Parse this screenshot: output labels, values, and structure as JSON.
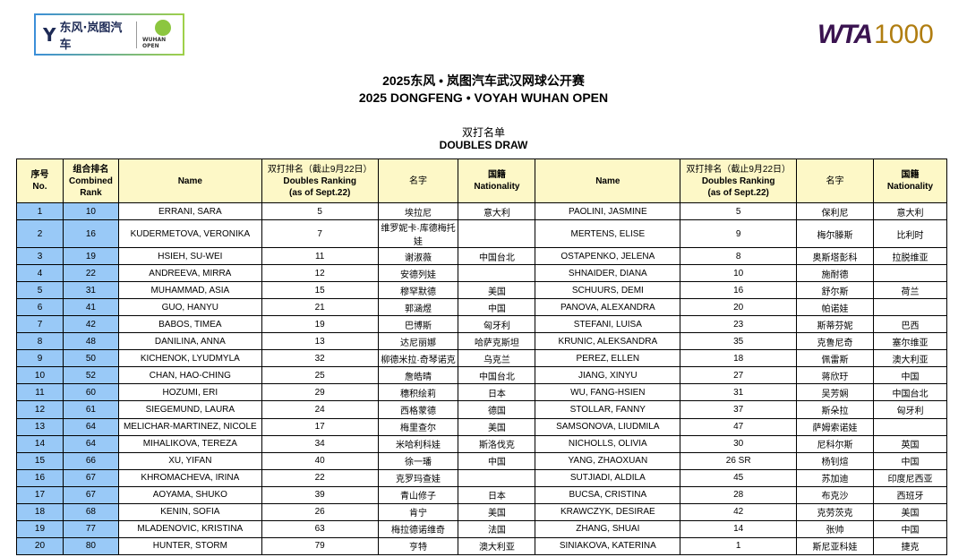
{
  "header": {
    "sponsor_logo": "东风·岚图汽车",
    "event_logo": "WUHAN OPEN",
    "wta_logo": "WTA",
    "wta_tier": "1000"
  },
  "title_cn": "2025东风 • 岚图汽车武汉网球公开赛",
  "title_en": "2025 DONGFENG • VOYAH WUHAN OPEN",
  "subtitle_cn": "双打名单",
  "subtitle_en": "DOUBLES DRAW",
  "columns": {
    "no_cn": "序号",
    "no_en": "No.",
    "rank_cn": "组合排名",
    "rank_en1": "Combined",
    "rank_en2": "Rank",
    "name": "Name",
    "dr_cn": "双打排名（截止9月22日）",
    "dr_en1": "Doubles Ranking",
    "dr_en2": "(as of Sept.22)",
    "cn_name": "名字",
    "nat_cn": "国籍",
    "nat_en": "Nationality"
  },
  "colors": {
    "header_bg": "#fdf8c7",
    "rank_bg": "#99c9f7"
  },
  "rows": [
    [
      "1",
      "10",
      "ERRANI, SARA",
      "5",
      "埃拉尼",
      "意大利",
      "PAOLINI, JASMINE",
      "5",
      "保利尼",
      "意大利"
    ],
    [
      "2",
      "16",
      "KUDERMETOVA, VERONIKA",
      "7",
      "维罗妮卡·库德梅托娃",
      "",
      "MERTENS, ELISE",
      "9",
      "梅尔滕斯",
      "比利时"
    ],
    [
      "3",
      "19",
      "HSIEH, SU-WEI",
      "11",
      "谢淑薇",
      "中国台北",
      "OSTAPENKO, JELENA",
      "8",
      "奥斯塔彭科",
      "拉脱维亚"
    ],
    [
      "4",
      "22",
      "ANDREEVA, MIRRA",
      "12",
      "安德列娃",
      "",
      "SHNAIDER, DIANA",
      "10",
      "施耐德",
      ""
    ],
    [
      "5",
      "31",
      "MUHAMMAD, ASIA",
      "15",
      "穆罕默德",
      "美国",
      "SCHUURS, DEMI",
      "16",
      "舒尔斯",
      "荷兰"
    ],
    [
      "6",
      "41",
      "GUO, HANYU",
      "21",
      "郭涵煜",
      "中国",
      "PANOVA, ALEXANDRA",
      "20",
      "帕诺娃",
      ""
    ],
    [
      "7",
      "42",
      "BABOS, TIMEA",
      "19",
      "巴博斯",
      "匈牙利",
      "STEFANI, LUISA",
      "23",
      "斯蒂芬妮",
      "巴西"
    ],
    [
      "8",
      "48",
      "DANILINA, ANNA",
      "13",
      "达尼丽娜",
      "哈萨克斯坦",
      "KRUNIC, ALEKSANDRA",
      "35",
      "克鲁尼奇",
      "塞尔维亚"
    ],
    [
      "9",
      "50",
      "KICHENOK, LYUDMYLA",
      "32",
      "柳德米拉·奇琴诺克",
      "乌克兰",
      "PEREZ, ELLEN",
      "18",
      "佩雷斯",
      "澳大利亚"
    ],
    [
      "10",
      "52",
      "CHAN, HAO-CHING",
      "25",
      "詹皓晴",
      "中国台北",
      "JIANG, XINYU",
      "27",
      "蒋欣玗",
      "中国"
    ],
    [
      "11",
      "60",
      "HOZUMI, ERI",
      "29",
      "穗积绘莉",
      "日本",
      "WU, FANG-HSIEN",
      "31",
      "吴芳娴",
      "中国台北"
    ],
    [
      "12",
      "61",
      "SIEGEMUND, LAURA",
      "24",
      "西格蒙德",
      "德国",
      "STOLLAR, FANNY",
      "37",
      "斯朵拉",
      "匈牙利"
    ],
    [
      "13",
      "64",
      "MELICHAR-MARTINEZ, NICOLE",
      "17",
      "梅里查尔",
      "美国",
      "SAMSONOVA, LIUDMILA",
      "47",
      "萨姆索诺娃",
      ""
    ],
    [
      "14",
      "64",
      "MIHALIKOVA, TEREZA",
      "34",
      "米哈利科娃",
      "斯洛伐克",
      "NICHOLLS, OLIVIA",
      "30",
      "尼科尔斯",
      "英国"
    ],
    [
      "15",
      "66",
      "XU, YIFAN",
      "40",
      "徐一璠",
      "中国",
      "YANG, ZHAOXUAN",
      "26 SR",
      "杨钊煊",
      "中国"
    ],
    [
      "16",
      "67",
      "KHROMACHEVA, IRINA",
      "22",
      "克罗玛查娃",
      "",
      "SUTJIADI, ALDILA",
      "45",
      "苏加迪",
      "印度尼西亚"
    ],
    [
      "17",
      "67",
      "AOYAMA, SHUKO",
      "39",
      "青山修子",
      "日本",
      "BUCSA, CRISTINA",
      "28",
      "布克沙",
      "西班牙"
    ],
    [
      "18",
      "68",
      "KENIN, SOFIA",
      "26",
      "肯宁",
      "美国",
      "KRAWCZYK, DESIRAE",
      "42",
      "克劳茨克",
      "美国"
    ],
    [
      "19",
      "77",
      "MLADENOVIC, KRISTINA",
      "63",
      "梅拉德诺维奇",
      "法国",
      "ZHANG, SHUAI",
      "14",
      "张帅",
      "中国"
    ],
    [
      "20",
      "80",
      "HUNTER, STORM",
      "79",
      "亨特",
      "澳大利亚",
      "SINIAKOVA, KATERINA",
      "1",
      "斯尼亚科娃",
      "捷克"
    ]
  ]
}
